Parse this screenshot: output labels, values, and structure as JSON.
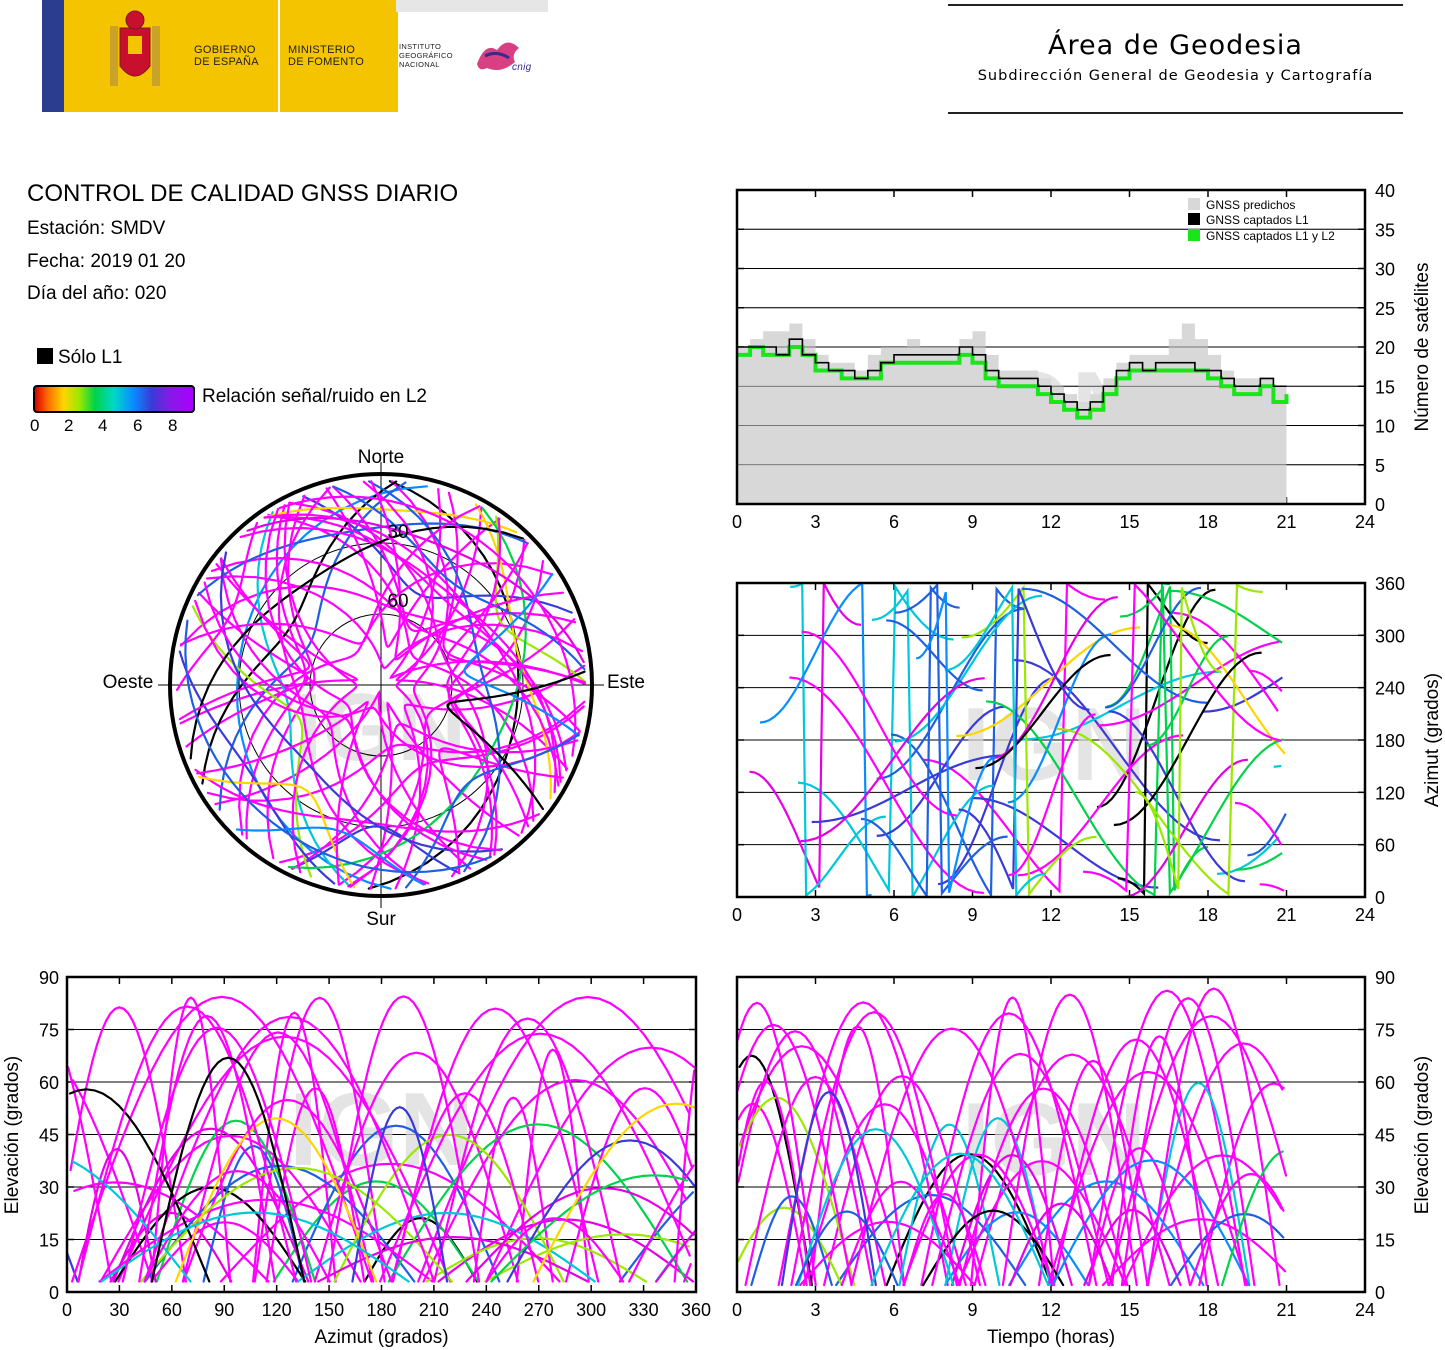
{
  "header": {
    "gov_line1": "GOBIERNO",
    "gov_line2": "DE ESPAÑA",
    "min_line1": "MINISTERIO",
    "min_line2": "DE FOMENTO",
    "ign_line1": "INSTITUTO",
    "ign_line2": "GEOGRÁFICO",
    "ign_line3": "NACIONAL",
    "cnig": "cnig",
    "area_title": "Área de Geodesia",
    "area_subtitle": "Subdirección General de Geodesia y Cartografía"
  },
  "report": {
    "title": "CONTROL DE CALIDAD GNSS DIARIO",
    "station": "Estación: SMDV",
    "date": "Fecha: 2019 01 20",
    "doy": "Día del año: 020"
  },
  "legend": {
    "l1_only": "Sólo L1",
    "snr_label": "Relación señal/ruido en L2",
    "snr_ticks": [
      "0",
      "2",
      "4",
      "6",
      "8"
    ],
    "colors": {
      "l1_only": "#000000",
      "snr_low": "#d80000",
      "snr_high": "#a800ff"
    }
  },
  "watermark": "IGN",
  "chart_data": [
    {
      "type": "area",
      "id": "satellite-count",
      "ylabel": "Número de satélites",
      "xlim": [
        0,
        24
      ],
      "ylim": [
        0,
        40
      ],
      "xticks": [
        "0",
        "3",
        "6",
        "9",
        "12",
        "15",
        "18",
        "21",
        "24"
      ],
      "yticks": [
        "0",
        "5",
        "10",
        "15",
        "20",
        "25",
        "30",
        "35",
        "40"
      ],
      "grid": true,
      "legend_position": "top-right",
      "series": [
        {
          "name": "GNSS predichos",
          "color": "#d8d8d8",
          "x": [
            0,
            0.5,
            1,
            1.5,
            2,
            2.5,
            3,
            3.5,
            4,
            4.5,
            5,
            5.5,
            6,
            6.5,
            7,
            7.5,
            8,
            8.5,
            9,
            9.5,
            10,
            10.5,
            11,
            11.5,
            12,
            12.5,
            13,
            13.5,
            14,
            14.5,
            15,
            15.5,
            16,
            16.5,
            17,
            17.5,
            18,
            18.5,
            19,
            19.5,
            20,
            20.5,
            21
          ],
          "values": [
            20,
            21,
            22,
            22,
            23,
            21,
            19,
            18,
            18,
            17,
            19,
            20,
            20,
            21,
            20,
            20,
            20,
            21,
            22,
            19,
            17,
            17,
            17,
            16,
            15,
            14,
            13,
            14,
            16,
            18,
            19,
            19,
            19,
            21,
            23,
            21,
            19,
            17,
            16,
            16,
            16,
            15,
            16
          ]
        },
        {
          "name": "GNSS captados L1",
          "color": "#000000",
          "x": [
            0,
            0.5,
            1,
            1.5,
            2,
            2.5,
            3,
            3.5,
            4,
            4.5,
            5,
            5.5,
            6,
            6.5,
            7,
            7.5,
            8,
            8.5,
            9,
            9.5,
            10,
            10.5,
            11,
            11.5,
            12,
            12.5,
            13,
            13.5,
            14,
            14.5,
            15,
            15.5,
            16,
            16.5,
            17,
            17.5,
            18,
            18.5,
            19,
            19.5,
            20,
            20.5,
            21
          ],
          "values": [
            20,
            20,
            20,
            19,
            21,
            19,
            18,
            17,
            17,
            16,
            17,
            18,
            19,
            19,
            19,
            19,
            19,
            20,
            19,
            17,
            16,
            16,
            16,
            15,
            14,
            13,
            12,
            13,
            15,
            17,
            18,
            17,
            18,
            18,
            18,
            17,
            17,
            16,
            15,
            15,
            16,
            15,
            15
          ]
        },
        {
          "name": "GNSS captados L1 y L2",
          "color": "#19e619",
          "x": [
            0,
            0.5,
            1,
            1.5,
            2,
            2.5,
            3,
            3.5,
            4,
            4.5,
            5,
            5.5,
            6,
            6.5,
            7,
            7.5,
            8,
            8.5,
            9,
            9.5,
            10,
            10.5,
            11,
            11.5,
            12,
            12.5,
            13,
            13.5,
            14,
            14.5,
            15,
            15.5,
            16,
            16.5,
            17,
            17.5,
            18,
            18.5,
            19,
            19.5,
            20,
            20.5,
            21
          ],
          "values": [
            19,
            20,
            19,
            19,
            20,
            19,
            17,
            17,
            16,
            16,
            16,
            18,
            18,
            18,
            18,
            18,
            18,
            19,
            18,
            16,
            15,
            15,
            15,
            14,
            13,
            12,
            11,
            12,
            14,
            16,
            17,
            17,
            17,
            17,
            17,
            17,
            16,
            15,
            14,
            14,
            15,
            13,
            14
          ]
        }
      ]
    },
    {
      "type": "scatter",
      "id": "skyplot",
      "projection": "polar",
      "direction_labels": {
        "north": "Norte",
        "south": "Sur",
        "west": "Oeste",
        "east": "Este"
      },
      "ring_labels": [
        "30",
        "60"
      ],
      "color_scale": "SNR L2 (0–8), black = Sólo L1"
    },
    {
      "type": "scatter",
      "id": "azimuth-time",
      "ylabel": "Azimut (grados)",
      "xlim": [
        0,
        24
      ],
      "ylim": [
        0,
        360
      ],
      "xticks": [
        "0",
        "3",
        "6",
        "9",
        "12",
        "15",
        "18",
        "21",
        "24"
      ],
      "yticks": [
        "0",
        "60",
        "120",
        "180",
        "240",
        "300",
        "360"
      ],
      "grid": true
    },
    {
      "type": "scatter",
      "id": "elevation-azimuth",
      "xlabel": "Azimut (grados)",
      "ylabel": "Elevación (grados)",
      "xlim": [
        0,
        360
      ],
      "ylim": [
        0,
        90
      ],
      "xticks": [
        "0",
        "30",
        "60",
        "90",
        "120",
        "150",
        "180",
        "210",
        "240",
        "270",
        "300",
        "330",
        "360"
      ],
      "yticks": [
        "0",
        "15",
        "30",
        "45",
        "60",
        "75",
        "90"
      ],
      "grid": true
    },
    {
      "type": "scatter",
      "id": "elevation-time",
      "xlabel": "Tiempo (horas)",
      "ylabel": "Elevación (grados)",
      "xlim": [
        0,
        24
      ],
      "ylim": [
        0,
        90
      ],
      "xticks": [
        "0",
        "3",
        "6",
        "9",
        "12",
        "15",
        "18",
        "21",
        "24"
      ],
      "yticks": [
        "0",
        "15",
        "30",
        "45",
        "60",
        "75",
        "90"
      ],
      "grid": true
    }
  ]
}
